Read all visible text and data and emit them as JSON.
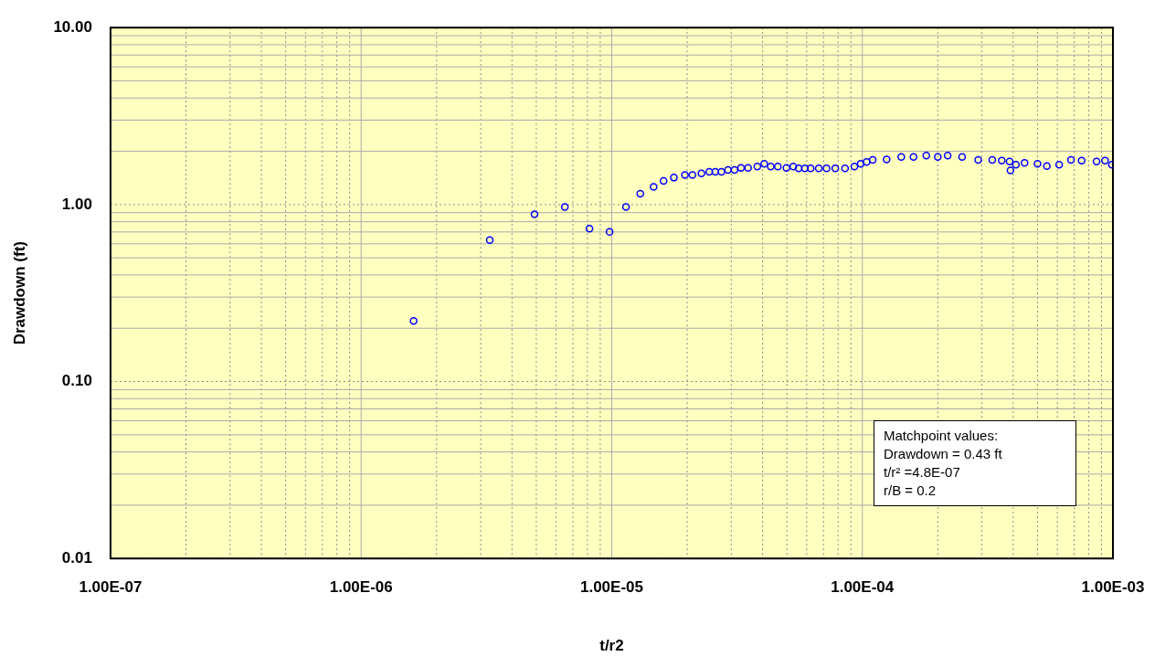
{
  "chart_data": {
    "type": "scatter",
    "xlabel": "t/r2",
    "ylabel": "Drawdown (ft)",
    "log": "xy",
    "grid": true,
    "legend": false,
    "marker": "circle",
    "xlim": [
      1e-07,
      0.001
    ],
    "ylim": [
      0.01,
      10
    ],
    "xticks": [
      {
        "value": 1e-07,
        "label": "1.00E-07"
      },
      {
        "value": 2e-07,
        "label": null
      },
      {
        "value": 3e-07,
        "label": null
      },
      {
        "value": 4e-07,
        "label": null
      },
      {
        "value": 5e-07,
        "label": null
      },
      {
        "value": 6e-07,
        "label": null
      },
      {
        "value": 7e-07,
        "label": null
      },
      {
        "value": 8e-07,
        "label": null
      },
      {
        "value": 9e-07,
        "label": null
      },
      {
        "value": 1e-06,
        "label": "1.00E-06"
      },
      {
        "value": 2e-06,
        "label": null
      },
      {
        "value": 3e-06,
        "label": null
      },
      {
        "value": 4e-06,
        "label": null
      },
      {
        "value": 5e-06,
        "label": null
      },
      {
        "value": 6e-06,
        "label": null
      },
      {
        "value": 7e-06,
        "label": null
      },
      {
        "value": 8e-06,
        "label": null
      },
      {
        "value": 9e-06,
        "label": null
      },
      {
        "value": 1e-05,
        "label": "1.00E-05"
      },
      {
        "value": 2e-05,
        "label": null
      },
      {
        "value": 3e-05,
        "label": null
      },
      {
        "value": 4e-05,
        "label": null
      },
      {
        "value": 5e-05,
        "label": null
      },
      {
        "value": 6e-05,
        "label": null
      },
      {
        "value": 7e-05,
        "label": null
      },
      {
        "value": 8e-05,
        "label": null
      },
      {
        "value": 9e-05,
        "label": null
      },
      {
        "value": 0.0001,
        "label": "1.00E-04"
      },
      {
        "value": 0.0002,
        "label": null
      },
      {
        "value": 0.0003,
        "label": null
      },
      {
        "value": 0.0004,
        "label": null
      },
      {
        "value": 0.0005,
        "label": null
      },
      {
        "value": 0.0006,
        "label": null
      },
      {
        "value": 0.0007,
        "label": null
      },
      {
        "value": 0.0008,
        "label": null
      },
      {
        "value": 0.0009,
        "label": null
      },
      {
        "value": 0.001,
        "label": "1.00E-03"
      }
    ],
    "yticks": [
      {
        "value": 0.01,
        "label": "0.01"
      },
      {
        "value": 0.02,
        "label": null
      },
      {
        "value": 0.03,
        "label": null
      },
      {
        "value": 0.04,
        "label": null
      },
      {
        "value": 0.05,
        "label": null
      },
      {
        "value": 0.06,
        "label": null
      },
      {
        "value": 0.07,
        "label": null
      },
      {
        "value": 0.08,
        "label": null
      },
      {
        "value": 0.09,
        "label": null
      },
      {
        "value": 0.1,
        "label": "0.10"
      },
      {
        "value": 0.2,
        "label": null
      },
      {
        "value": 0.3,
        "label": null
      },
      {
        "value": 0.4,
        "label": null
      },
      {
        "value": 0.5,
        "label": null
      },
      {
        "value": 0.6,
        "label": null
      },
      {
        "value": 0.7,
        "label": null
      },
      {
        "value": 0.8,
        "label": null
      },
      {
        "value": 0.9,
        "label": null
      },
      {
        "value": 1,
        "label": "1.00"
      },
      {
        "value": 2,
        "label": null
      },
      {
        "value": 3,
        "label": null
      },
      {
        "value": 4,
        "label": null
      },
      {
        "value": 5,
        "label": null
      },
      {
        "value": 6,
        "label": null
      },
      {
        "value": 7,
        "label": null
      },
      {
        "value": 8,
        "label": null
      },
      {
        "value": 9,
        "label": null
      },
      {
        "value": 10,
        "label": "10.00"
      }
    ],
    "annotations": [
      "Matchpoint values:",
      "Drawdown =  0.43 ft",
      "t/r² =4.8E-07",
      "r/B = 0.2"
    ],
    "series": [
      {
        "color": "#0000ff",
        "x": [
          1.62e-06,
          3.26e-06,
          4.92e-06,
          6.5e-06,
          8.15e-06,
          9.8e-06,
          1.14e-05,
          1.3e-05,
          1.47e-05,
          1.61e-05,
          1.77e-05,
          1.96e-05,
          2.1e-05,
          2.28e-05,
          2.45e-05,
          2.59e-05,
          2.74e-05,
          2.91e-05,
          3.09e-05,
          3.28e-05,
          3.5e-05,
          3.81e-05,
          4.06e-05,
          4.31e-05,
          4.6e-05,
          4.98e-05,
          5.3e-05,
          5.57e-05,
          5.9e-05,
          6.22e-05,
          6.7e-05,
          7.2e-05,
          7.8e-05,
          8.53e-05,
          9.3e-05,
          9.85e-05,
          0.000104,
          0.00011,
          0.000125,
          0.000143,
          0.00016,
          0.00018,
          0.0002,
          0.000219,
          0.00025,
          0.00029,
          0.00033,
          0.00036,
          0.000387,
          0.00039,
          0.00041,
          0.000444,
          0.0005,
          0.000545,
          0.00061,
          0.00068,
          0.00075,
          0.00086,
          0.00093,
          0.00099
        ],
        "values": [
          0.22,
          0.63,
          0.88,
          0.97,
          0.73,
          0.7,
          0.97,
          1.15,
          1.26,
          1.36,
          1.42,
          1.47,
          1.47,
          1.5,
          1.53,
          1.53,
          1.53,
          1.57,
          1.57,
          1.61,
          1.61,
          1.64,
          1.7,
          1.64,
          1.64,
          1.61,
          1.64,
          1.6,
          1.6,
          1.6,
          1.6,
          1.6,
          1.6,
          1.6,
          1.64,
          1.7,
          1.74,
          1.79,
          1.8,
          1.86,
          1.86,
          1.89,
          1.86,
          1.89,
          1.86,
          1.79,
          1.79,
          1.77,
          1.75,
          1.56,
          1.68,
          1.72,
          1.7,
          1.65,
          1.68,
          1.79,
          1.77,
          1.75,
          1.77,
          1.68
        ]
      }
    ]
  }
}
